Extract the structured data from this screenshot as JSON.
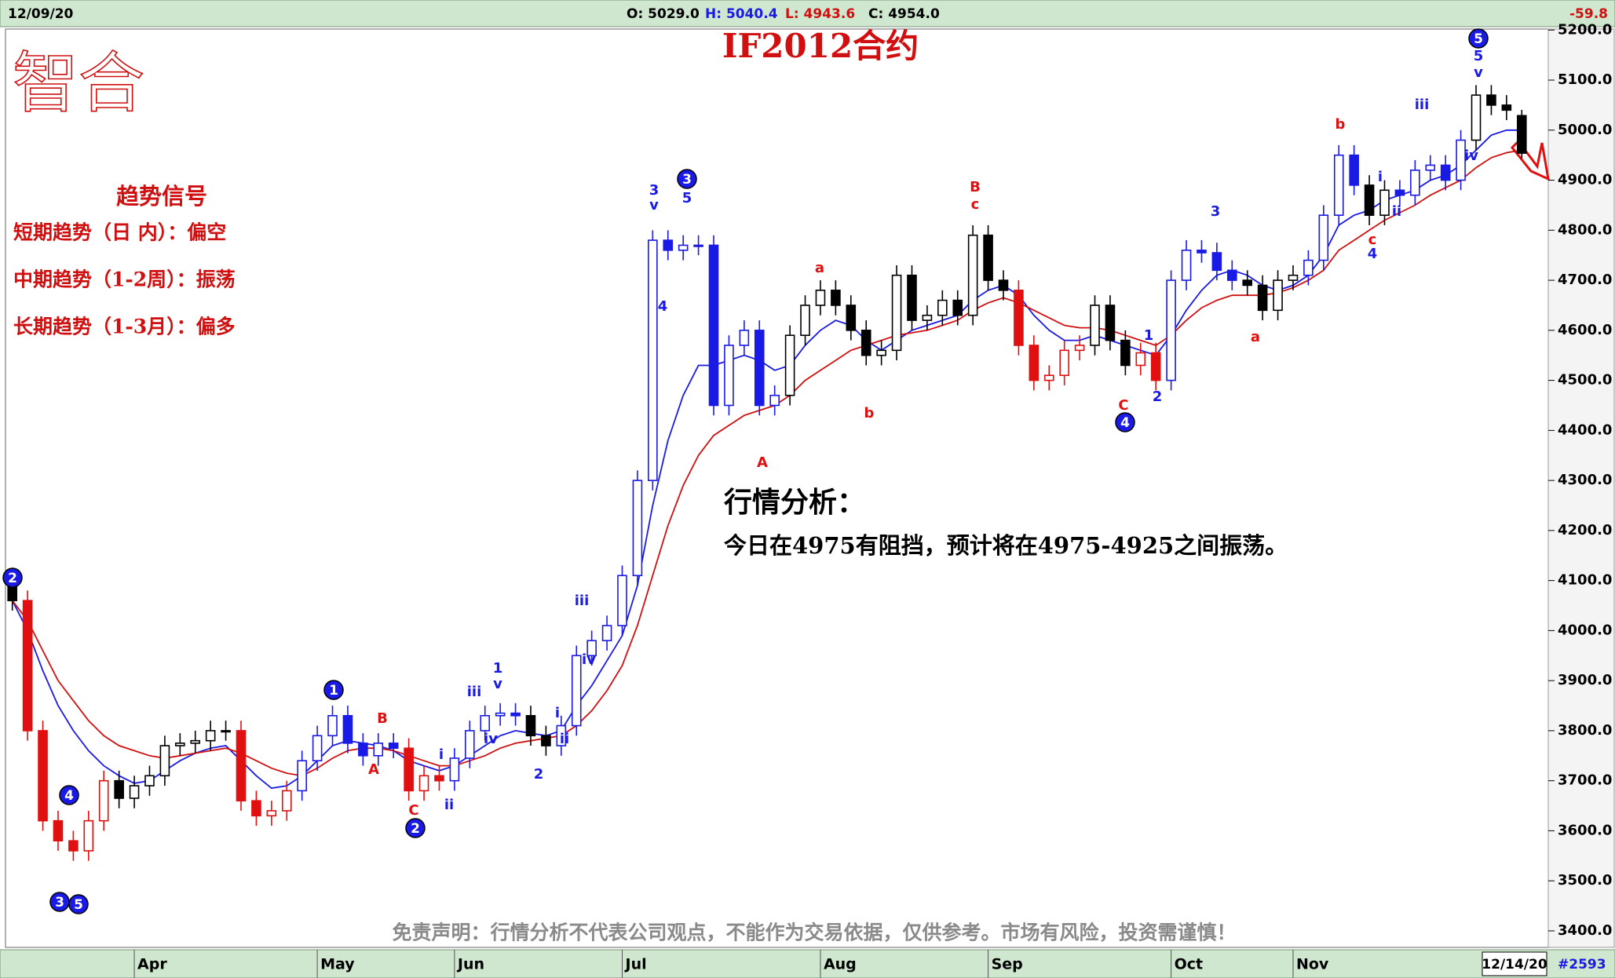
{
  "chart_data": {
    "type": "candlestick",
    "title": "IF2012合约",
    "logo": "智合",
    "header": {
      "date": "12/09/20",
      "open": "O: 5029.0",
      "high": "H: 5040.4",
      "low": "L: 4943.6",
      "close": "C: 4954.0",
      "change": -59.8
    },
    "signals": {
      "heading": "趋势信号",
      "lines": [
        "短期趋势（日 内）：偏空",
        "中期趋势（1-2周）：振荡",
        "长期趋势（1-3月）：偏多"
      ]
    },
    "analysis": {
      "heading": "行情分析：",
      "text": "今日在4975有阻挡，预计将在4975-4925之间振荡。"
    },
    "disclaimer": "免责声明：行情分析不代表公司观点，不能作为交易依据，仅供参考。市场有风险，投资需谨慎！",
    "x_end_label": "12/14/20",
    "bar_count": "#2593",
    "categories": [
      null,
      null,
      null,
      null,
      null,
      null,
      null,
      null,
      "Apr",
      null,
      null,
      null,
      null,
      null,
      null,
      null,
      null,
      null,
      null,
      null,
      "May",
      null,
      null,
      null,
      null,
      null,
      null,
      null,
      null,
      "Jun",
      null,
      null,
      null,
      null,
      null,
      null,
      null,
      null,
      null,
      null,
      "Jul",
      null,
      null,
      null,
      null,
      null,
      null,
      null,
      null,
      null,
      null,
      null,
      null,
      "Aug",
      null,
      null,
      null,
      null,
      null,
      null,
      null,
      null,
      null,
      null,
      "Sep",
      null,
      null,
      null,
      null,
      null,
      null,
      null,
      null,
      null,
      null,
      null,
      "Oct",
      null,
      null,
      null,
      null,
      null,
      null,
      null,
      "Nov",
      null,
      null,
      null,
      null,
      null,
      null,
      null,
      null,
      null,
      null,
      null,
      null,
      null,
      null,
      null
    ],
    "open": [
      4100,
      4060,
      3800,
      3620,
      3580,
      3560,
      3620,
      3700,
      3665,
      3690,
      3710,
      3770,
      3775,
      3780,
      3800,
      3800,
      3660,
      3630,
      3640,
      3680,
      3740,
      3790,
      3830,
      3775,
      3750,
      3775,
      3765,
      3680,
      3710,
      3700,
      3745,
      3800,
      3830,
      3835,
      3830,
      3790,
      3770,
      3810,
      3950,
      3980,
      4010,
      4110,
      4300,
      4780,
      4760,
      4770,
      4770,
      4450,
      4570,
      4600,
      4450,
      4470,
      4590,
      4650,
      4680,
      4650,
      4600,
      4550,
      4560,
      4710,
      4620,
      4630,
      4660,
      4630,
      4790,
      4700,
      4680,
      4570,
      4500,
      4510,
      4560,
      4570,
      4650,
      4580,
      4530,
      4555,
      4500,
      4700,
      4760,
      4755,
      4720,
      4700,
      4690,
      4640,
      4700,
      4710,
      4740,
      4830,
      4950,
      4890,
      4830,
      4880,
      4870,
      4920,
      4930,
      4900,
      4980,
      5070,
      5050,
      5029
    ],
    "high": [
      4120,
      4080,
      3820,
      3640,
      3600,
      3640,
      3720,
      3720,
      3710,
      3730,
      3790,
      3795,
      3800,
      3820,
      3820,
      3820,
      3680,
      3660,
      3700,
      3760,
      3810,
      3850,
      3850,
      3795,
      3795,
      3795,
      3785,
      3730,
      3730,
      3765,
      3820,
      3850,
      3855,
      3855,
      3850,
      3810,
      3830,
      3970,
      4000,
      4030,
      4130,
      4320,
      4800,
      4800,
      4790,
      4790,
      4790,
      4590,
      4620,
      4620,
      4490,
      4610,
      4670,
      4700,
      4700,
      4670,
      4620,
      4580,
      4730,
      4730,
      4650,
      4680,
      4680,
      4810,
      4810,
      4720,
      4700,
      4590,
      4530,
      4580,
      4590,
      4670,
      4670,
      4600,
      4575,
      4575,
      4720,
      4780,
      4780,
      4775,
      4740,
      4720,
      4710,
      4720,
      4730,
      4760,
      4850,
      4970,
      4970,
      4910,
      4900,
      4900,
      4940,
      4950,
      4950,
      5000,
      5090,
      5090,
      5070,
      5040.4
    ],
    "low": [
      4040,
      3780,
      3600,
      3560,
      3540,
      3540,
      3600,
      3645,
      3645,
      3670,
      3690,
      3750,
      3755,
      3760,
      3780,
      3640,
      3610,
      3610,
      3620,
      3660,
      3720,
      3770,
      3755,
      3730,
      3730,
      3745,
      3660,
      3660,
      3680,
      3680,
      3725,
      3780,
      3810,
      3810,
      3770,
      3750,
      3750,
      3790,
      3930,
      3960,
      3990,
      4090,
      4280,
      4740,
      4740,
      4750,
      4430,
      4430,
      4550,
      4430,
      4430,
      4450,
      4570,
      4630,
      4630,
      4580,
      4530,
      4530,
      4540,
      4600,
      4600,
      4610,
      4610,
      4610,
      4680,
      4660,
      4550,
      4480,
      4480,
      4490,
      4540,
      4550,
      4560,
      4510,
      4510,
      4480,
      4480,
      4680,
      4735,
      4700,
      4680,
      4670,
      4620,
      4620,
      4680,
      4690,
      4720,
      4810,
      4870,
      4810,
      4810,
      4850,
      4850,
      4900,
      4880,
      4880,
      4960,
      5030,
      5020,
      4943.6
    ],
    "close": [
      4060,
      3800,
      3620,
      3580,
      3560,
      3620,
      3700,
      3665,
      3690,
      3710,
      3770,
      3775,
      3780,
      3800,
      3800,
      3660,
      3630,
      3640,
      3680,
      3740,
      3790,
      3830,
      3775,
      3750,
      3775,
      3765,
      3680,
      3710,
      3700,
      3745,
      3800,
      3830,
      3835,
      3830,
      3790,
      3770,
      3810,
      3950,
      3980,
      4010,
      4110,
      4300,
      4780,
      4760,
      4770,
      4770,
      4450,
      4570,
      4600,
      4450,
      4470,
      4590,
      4650,
      4680,
      4650,
      4600,
      4550,
      4560,
      4710,
      4620,
      4630,
      4660,
      4630,
      4790,
      4700,
      4680,
      4570,
      4500,
      4510,
      4560,
      4570,
      4650,
      4580,
      4530,
      4555,
      4500,
      4700,
      4760,
      4755,
      4720,
      4700,
      4690,
      4640,
      4700,
      4710,
      4740,
      4830,
      4950,
      4890,
      4830,
      4880,
      4870,
      4920,
      4930,
      4900,
      4980,
      5070,
      5050,
      5040,
      4954
    ],
    "colors": [
      "#000000",
      "#e01010",
      "#e01010",
      "#e01010",
      "#e01010",
      "#e01010",
      "#e01010",
      "#000000",
      "#000000",
      "#000000",
      "#000000",
      "#000000",
      "#000000",
      "#000000",
      "#000000",
      "#e01010",
      "#e01010",
      "#e01010",
      "#e01010",
      "#1a1ae6",
      "#1a1ae6",
      "#1a1ae6",
      "#1a1ae6",
      "#1a1ae6",
      "#1a1ae6",
      "#1a1ae6",
      "#e01010",
      "#e01010",
      "#e01010",
      "#1a1ae6",
      "#1a1ae6",
      "#1a1ae6",
      "#1a1ae6",
      "#1a1ae6",
      "#000000",
      "#000000",
      "#1a1ae6",
      "#1a1ae6",
      "#1a1ae6",
      "#1a1ae6",
      "#1a1ae6",
      "#1a1ae6",
      "#1a1ae6",
      "#1a1ae6",
      "#1a1ae6",
      "#1a1ae6",
      "#1a1ae6",
      "#1a1ae6",
      "#1a1ae6",
      "#1a1ae6",
      "#1a1ae6",
      "#000000",
      "#000000",
      "#000000",
      "#000000",
      "#000000",
      "#000000",
      "#000000",
      "#000000",
      "#000000",
      "#000000",
      "#000000",
      "#000000",
      "#000000",
      "#000000",
      "#000000",
      "#e01010",
      "#e01010",
      "#e01010",
      "#e01010",
      "#e01010",
      "#000000",
      "#000000",
      "#000000",
      "#e01010",
      "#e01010",
      "#1a1ae6",
      "#1a1ae6",
      "#1a1ae6",
      "#1a1ae6",
      "#1a1ae6",
      "#000000",
      "#000000",
      "#000000",
      "#000000",
      "#1a1ae6",
      "#1a1ae6",
      "#1a1ae6",
      "#1a1ae6",
      "#000000",
      "#000000",
      "#1a1ae6",
      "#1a1ae6",
      "#1a1ae6",
      "#1a1ae6",
      "#1a1ae6",
      "#000000",
      "#000000",
      "#000000",
      "#000000"
    ],
    "moving_averages": [
      {
        "color": "#1a1ae6",
        "values": [
          4060,
          4000,
          3920,
          3850,
          3800,
          3760,
          3730,
          3710,
          3695,
          3700,
          3720,
          3740,
          3755,
          3765,
          3770,
          3740,
          3710,
          3685,
          3690,
          3710,
          3740,
          3770,
          3780,
          3775,
          3770,
          3760,
          3740,
          3730,
          3720,
          3730,
          3750,
          3770,
          3790,
          3800,
          3795,
          3790,
          3800,
          3850,
          3890,
          3940,
          3990,
          4090,
          4250,
          4380,
          4470,
          4530,
          4530,
          4540,
          4550,
          4540,
          4520,
          4530,
          4570,
          4600,
          4620,
          4610,
          4580,
          4560,
          4580,
          4600,
          4610,
          4620,
          4630,
          4660,
          4680,
          4690,
          4670,
          4630,
          4600,
          4580,
          4580,
          4590,
          4580,
          4570,
          4560,
          4550,
          4590,
          4640,
          4680,
          4710,
          4720,
          4710,
          4690,
          4680,
          4690,
          4710,
          4750,
          4810,
          4830,
          4840,
          4860,
          4870,
          4880,
          4900,
          4910,
          4930,
          4960,
          4990,
          5000,
          5000
        ]
      },
      {
        "color": "#d01010",
        "values": [
          4060,
          4020,
          3960,
          3900,
          3860,
          3820,
          3790,
          3770,
          3760,
          3750,
          3745,
          3750,
          3755,
          3760,
          3765,
          3755,
          3740,
          3725,
          3715,
          3710,
          3725,
          3745,
          3760,
          3765,
          3765,
          3760,
          3750,
          3740,
          3730,
          3730,
          3740,
          3750,
          3765,
          3775,
          3780,
          3785,
          3790,
          3810,
          3840,
          3880,
          3930,
          4010,
          4110,
          4210,
          4290,
          4350,
          4390,
          4410,
          4430,
          4440,
          4450,
          4470,
          4500,
          4520,
          4540,
          4560,
          4570,
          4580,
          4590,
          4595,
          4600,
          4610,
          4620,
          4640,
          4655,
          4665,
          4655,
          4640,
          4625,
          4610,
          4605,
          4605,
          4600,
          4590,
          4580,
          4570,
          4590,
          4620,
          4645,
          4660,
          4670,
          4670,
          4670,
          4675,
          4685,
          4700,
          4720,
          4760,
          4780,
          4800,
          4820,
          4835,
          4850,
          4870,
          4885,
          4900,
          4925,
          4945,
          4955,
          4960
        ]
      }
    ],
    "annotations": [
      {
        "text": "2",
        "color": "#1a1ae6",
        "circled": true
      },
      {
        "text": "4",
        "color": "#1a1ae6",
        "circled": true
      },
      {
        "text": "3",
        "color": "#1a1ae6",
        "circled": true
      },
      {
        "text": "5",
        "color": "#1a1ae6",
        "circled": true
      },
      {
        "text": "1",
        "color": "#1a1ae6",
        "circled": true
      },
      {
        "text": "B",
        "color": "#e01010",
        "circled": false
      },
      {
        "text": "A",
        "color": "#e01010",
        "circled": false
      },
      {
        "text": "C",
        "color": "#e01010",
        "circled": false
      },
      {
        "text": "2",
        "color": "#1a1ae6",
        "circled": true
      },
      {
        "text": "i",
        "color": "#1a1ae6",
        "circled": false
      },
      {
        "text": "ii",
        "color": "#1a1ae6",
        "circled": false
      },
      {
        "text": "iii",
        "color": "#1a1ae6",
        "circled": false
      },
      {
        "text": "iv",
        "color": "#1a1ae6",
        "circled": false
      },
      {
        "text": "1",
        "color": "#1a1ae6",
        "circled": false
      },
      {
        "text": "v",
        "color": "#1a1ae6",
        "circled": false
      },
      {
        "text": "2",
        "color": "#1a1ae6",
        "circled": false
      },
      {
        "text": "i",
        "color": "#1a1ae6",
        "circled": false
      },
      {
        "text": "ii",
        "color": "#1a1ae6",
        "circled": false
      },
      {
        "text": "iii",
        "color": "#1a1ae6",
        "circled": false
      },
      {
        "text": "iv",
        "color": "#1a1ae6",
        "circled": false
      },
      {
        "text": "3",
        "color": "#1a1ae6",
        "circled": false
      },
      {
        "text": "v",
        "color": "#1a1ae6",
        "circled": false
      },
      {
        "text": "3",
        "color": "#1a1ae6",
        "circled": true
      },
      {
        "text": "5",
        "color": "#1a1ae6",
        "circled": false
      },
      {
        "text": "4",
        "color": "#1a1ae6",
        "circled": false
      },
      {
        "text": "A",
        "color": "#e01010",
        "circled": false
      },
      {
        "text": "a",
        "color": "#e01010",
        "circled": false
      },
      {
        "text": "b",
        "color": "#e01010",
        "circled": false
      },
      {
        "text": "B",
        "color": "#e01010",
        "circled": false
      },
      {
        "text": "c",
        "color": "#e01010",
        "circled": false
      },
      {
        "text": "3",
        "color": "#1a1ae6",
        "circled": false
      },
      {
        "text": "1",
        "color": "#1a1ae6",
        "circled": false
      },
      {
        "text": "C",
        "color": "#e01010",
        "circled": false
      },
      {
        "text": "4",
        "color": "#1a1ae6",
        "circled": true
      },
      {
        "text": "2",
        "color": "#1a1ae6",
        "circled": false
      },
      {
        "text": "a",
        "color": "#e01010",
        "circled": false
      },
      {
        "text": "b",
        "color": "#e01010",
        "circled": false
      },
      {
        "text": "i",
        "color": "#1a1ae6",
        "circled": false
      },
      {
        "text": "ii",
        "color": "#1a1ae6",
        "circled": false
      },
      {
        "text": "c",
        "color": "#e01010",
        "circled": false
      },
      {
        "text": "4",
        "color": "#1a1ae6",
        "circled": false
      },
      {
        "text": "iii",
        "color": "#1a1ae6",
        "circled": false
      },
      {
        "text": "iv",
        "color": "#1a1ae6",
        "circled": false
      },
      {
        "text": "5",
        "color": "#1a1ae6",
        "circled": true
      },
      {
        "text": "5",
        "color": "#1a1ae6",
        "circled": false
      },
      {
        "text": "v",
        "color": "#1a1ae6",
        "circled": false
      }
    ],
    "ylim": [
      3367,
      5202
    ],
    "yticks": [
      {
        "value": 3400,
        "label": "3400.0"
      },
      {
        "value": 3500,
        "label": "3500.0"
      },
      {
        "value": 3600,
        "label": "3600.0"
      },
      {
        "value": 3700,
        "label": "3700.0"
      },
      {
        "value": 3800,
        "label": "3800.0"
      },
      {
        "value": 3900,
        "label": "3900.0"
      },
      {
        "value": 4000,
        "label": "4000.0"
      },
      {
        "value": 4100,
        "label": "4100.0"
      },
      {
        "value": 4200,
        "label": "4200.0"
      },
      {
        "value": 4300,
        "label": "4300.0"
      },
      {
        "value": 4400,
        "label": "4400.0"
      },
      {
        "value": 4500,
        "label": "4500.0"
      },
      {
        "value": 4600,
        "label": "4600.0"
      },
      {
        "value": 4700,
        "label": "4700.0"
      },
      {
        "value": 4800,
        "label": "4800.0"
      },
      {
        "value": 4900,
        "label": "4900.0"
      },
      {
        "value": 5000,
        "label": "5000.0"
      },
      {
        "value": 5100,
        "label": "5100.0"
      },
      {
        "value": 5200,
        "label": "5200.0"
      }
    ],
    "grid": false
  }
}
